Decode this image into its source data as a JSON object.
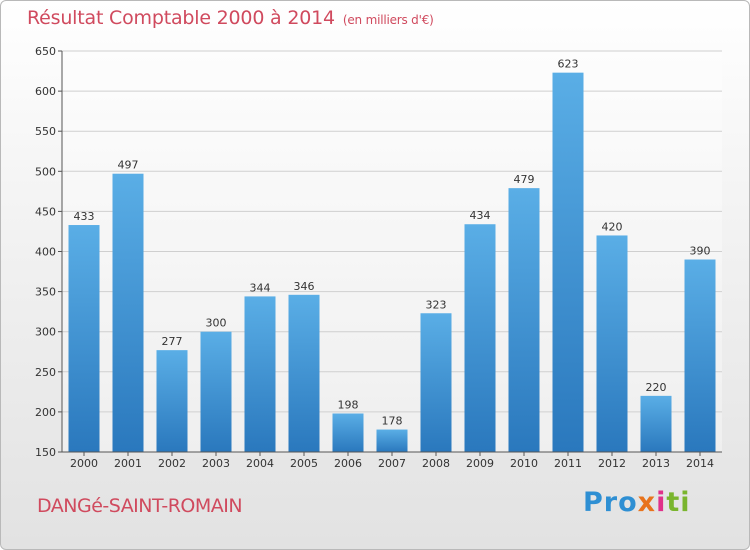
{
  "header": {
    "title": "Résultat Comptable 2000 à 2014",
    "subtitle": "(en milliers d'€)"
  },
  "footer": {
    "commune": "DANGé-SAINT-ROMAIN",
    "logo_parts": [
      "Pro",
      "x",
      "i",
      "ti"
    ]
  },
  "chart_data": {
    "type": "bar",
    "title": "Résultat Comptable 2000 à 2014",
    "subtitle": "(en milliers d'€)",
    "xlabel": "",
    "ylabel": "",
    "categories": [
      "2000",
      "2001",
      "2002",
      "2003",
      "2004",
      "2005",
      "2006",
      "2007",
      "2008",
      "2009",
      "2010",
      "2011",
      "2012",
      "2013",
      "2014"
    ],
    "values": [
      433,
      497,
      277,
      300,
      344,
      346,
      198,
      178,
      323,
      434,
      479,
      623,
      420,
      220,
      390
    ],
    "ylim": [
      150,
      650
    ],
    "yticks": [
      150,
      200,
      250,
      300,
      350,
      400,
      450,
      500,
      550,
      600,
      650
    ],
    "grid": true,
    "bar_color": "#3f97d7",
    "title_color": "#d04a5e"
  }
}
